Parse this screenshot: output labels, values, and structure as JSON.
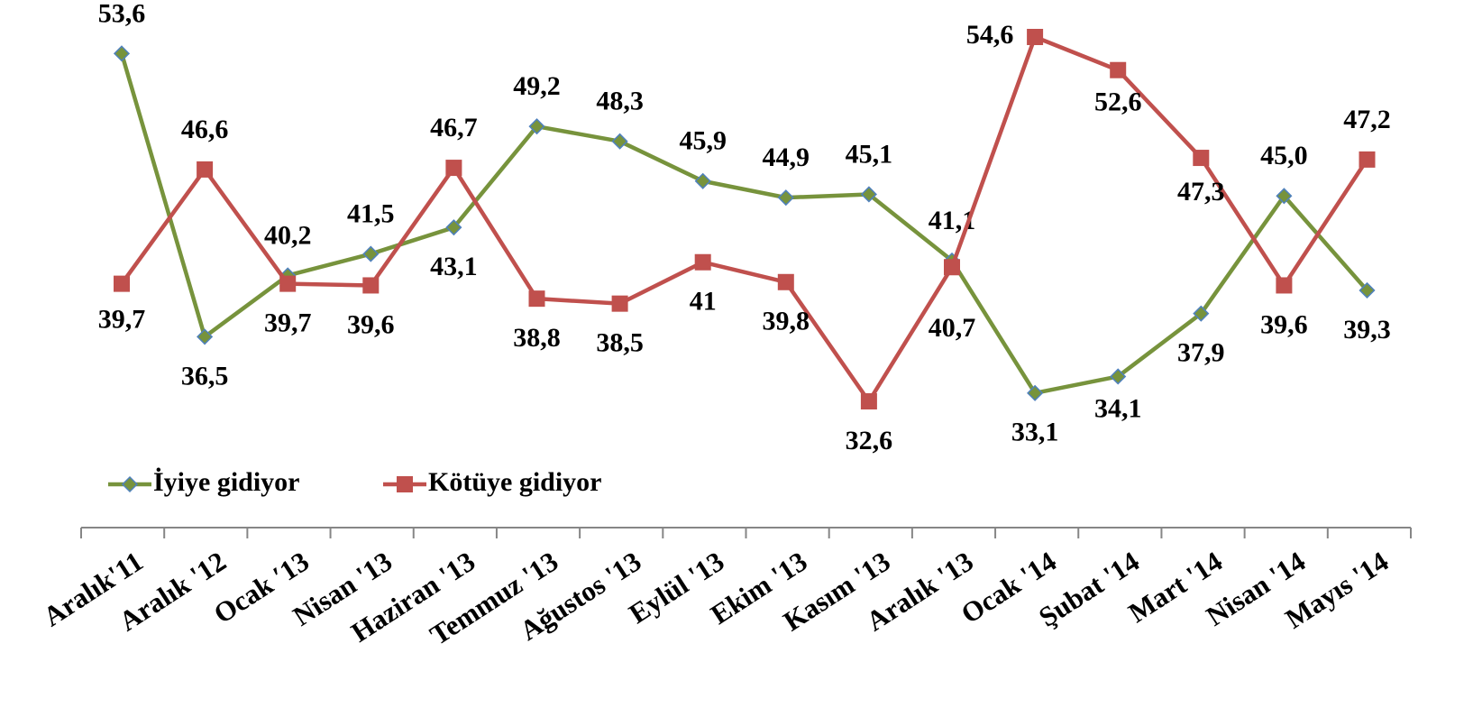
{
  "chart_data": {
    "type": "line",
    "categories": [
      "Aralık'11",
      "Aralık '12",
      "Ocak ′13",
      "Nisan '13",
      "Haziran '13",
      "Temmuz '13",
      "Ağustos '13",
      "Eylül '13",
      "Ekim '13",
      "Kasım '13",
      "Aralık '13",
      "Ocak '14",
      "Şubat '14",
      "Mart '14",
      "Nisan '14",
      "Mayıs '14"
    ],
    "series": [
      {
        "name": "İyiye gidiyor",
        "color": "#77933c",
        "marker": "diamond",
        "values": [
          53.6,
          36.5,
          40.2,
          41.5,
          43.1,
          49.2,
          48.3,
          45.9,
          44.9,
          45.1,
          41.1,
          33.1,
          34.1,
          37.9,
          45.0,
          39.3
        ],
        "value_labels": [
          "53,6",
          "36,5",
          "40,2",
          "41,5",
          "43,1",
          "49,2",
          "48,3",
          "45,9",
          "44,9",
          "45,1",
          "41,1",
          "33,1",
          "34,1",
          "37,9",
          "45,0",
          "39,3"
        ]
      },
      {
        "name": "Kötüye gidiyor",
        "color": "#c0504d",
        "marker": "square",
        "values": [
          39.7,
          46.6,
          39.7,
          39.6,
          46.7,
          38.8,
          38.5,
          41,
          39.8,
          32.6,
          40.7,
          54.6,
          52.6,
          47.3,
          39.6,
          47.2
        ],
        "value_labels": [
          "39,7",
          "46,6",
          "39,7",
          "39,6",
          "46,7",
          "38,8",
          "38,5",
          "41",
          "39,8",
          "32,6",
          "40,7",
          "54,6",
          "52,6",
          "47,3",
          "39,6",
          "47,2"
        ]
      }
    ]
  }
}
